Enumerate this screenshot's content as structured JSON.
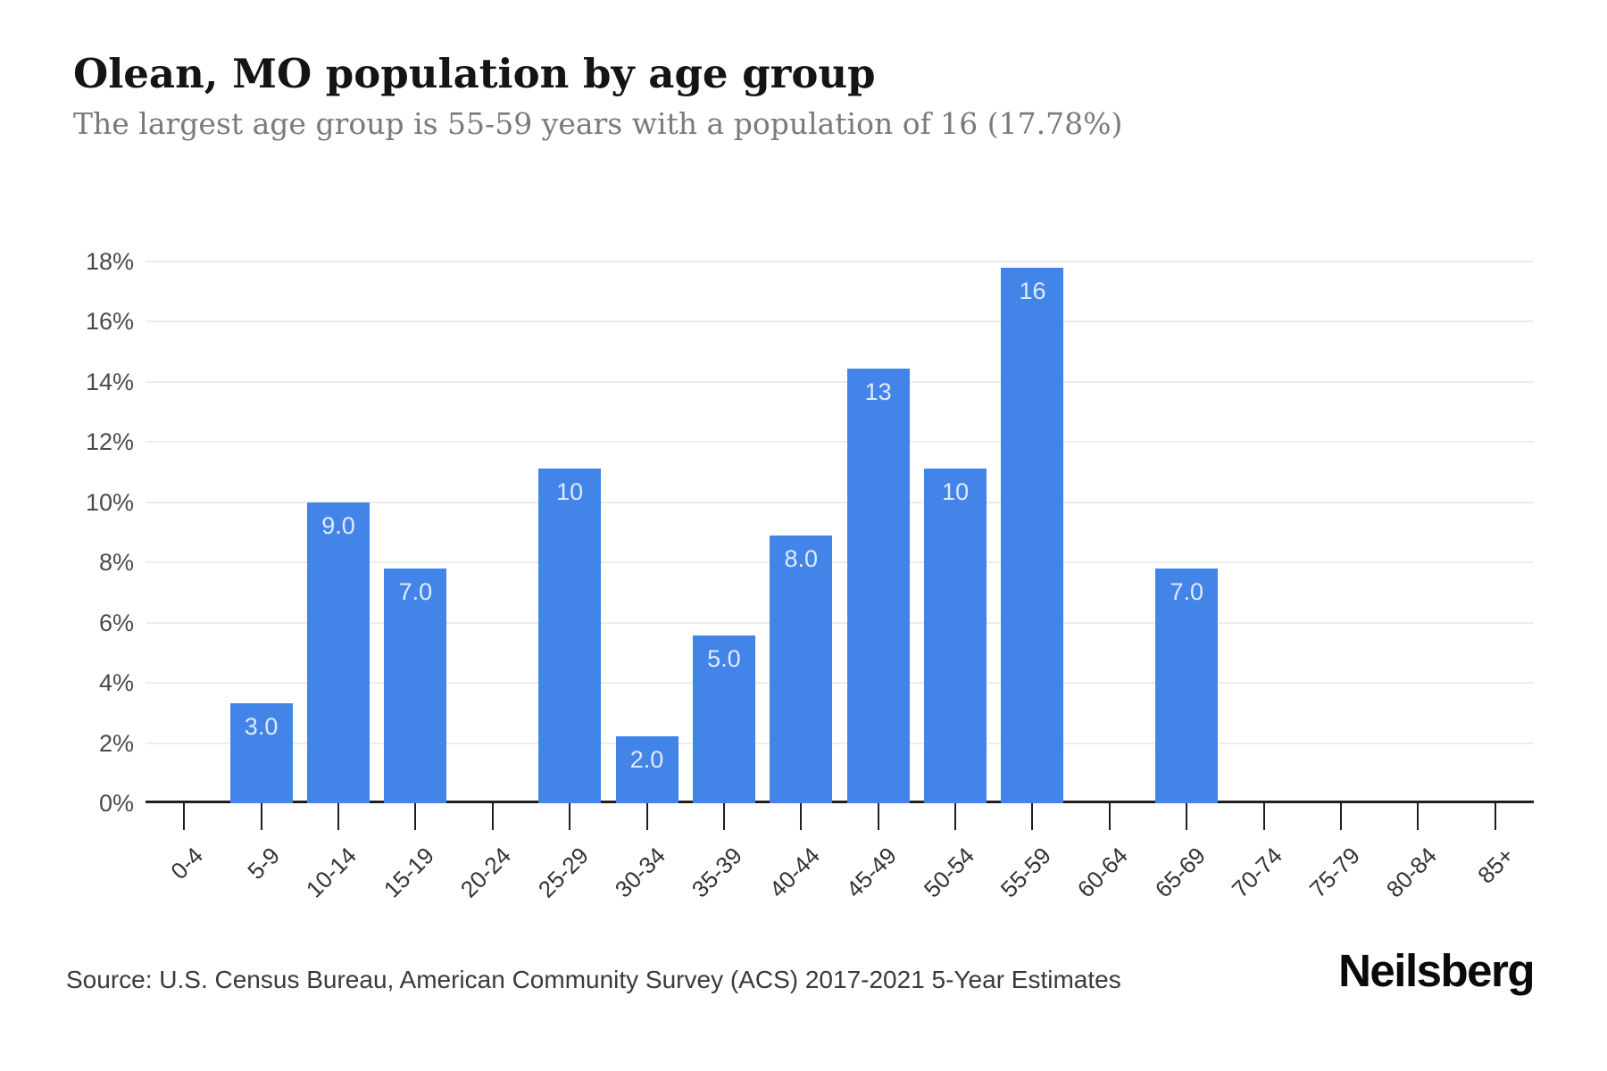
{
  "title": "Olean, MO population by age group",
  "subtitle": "The largest age group is 55-59 years with a population of 16 (17.78%)",
  "footer": {
    "source": "Source: U.S. Census Bureau, American Community Survey (ACS) 2017-2021 5-Year Estimates",
    "brand": "Neilsberg"
  },
  "colors": {
    "bar": "#4384e8",
    "bar_label": "#e0ebfb",
    "grid": "#ececec",
    "axis": "#1f1f1f",
    "y_tick_label": "#4a4a4a",
    "x_tick_label": "#333333",
    "title": "#141414",
    "subtitle": "#7a7a7a",
    "source": "#3a3a3a",
    "background": "#ffffff"
  },
  "chart_data": {
    "type": "bar",
    "title": "Olean, MO population by age group",
    "categories": [
      "0-4",
      "5-9",
      "10-14",
      "15-19",
      "20-24",
      "25-29",
      "30-34",
      "35-39",
      "40-44",
      "45-49",
      "50-54",
      "55-59",
      "60-64",
      "65-69",
      "70-74",
      "75-79",
      "80-84",
      "85+"
    ],
    "values": [
      0,
      3,
      9,
      7,
      0,
      10,
      2,
      5,
      8,
      13,
      10,
      16,
      0,
      7,
      0,
      0,
      0,
      0
    ],
    "percent_of_total": [
      0,
      3.33,
      10.0,
      7.78,
      0,
      11.11,
      2.22,
      5.56,
      8.89,
      14.44,
      11.11,
      17.78,
      0,
      7.78,
      0,
      0,
      0,
      0
    ],
    "bar_labels": [
      "",
      "3.0",
      "9.0",
      "7.0",
      "",
      "10",
      "2.0",
      "5.0",
      "8.0",
      "13",
      "10",
      "16",
      "",
      "7.0",
      "",
      "",
      "",
      ""
    ],
    "xlabel": "",
    "ylabel": "",
    "y_ticks_percent": [
      0,
      2,
      4,
      6,
      8,
      10,
      12,
      14,
      16,
      18
    ],
    "y_tick_labels": [
      "0%",
      "2%",
      "4%",
      "6%",
      "8%",
      "10%",
      "12%",
      "14%",
      "16%",
      "18%"
    ],
    "ylim": [
      0,
      18
    ],
    "grid": "horizontal",
    "legend": "none"
  }
}
